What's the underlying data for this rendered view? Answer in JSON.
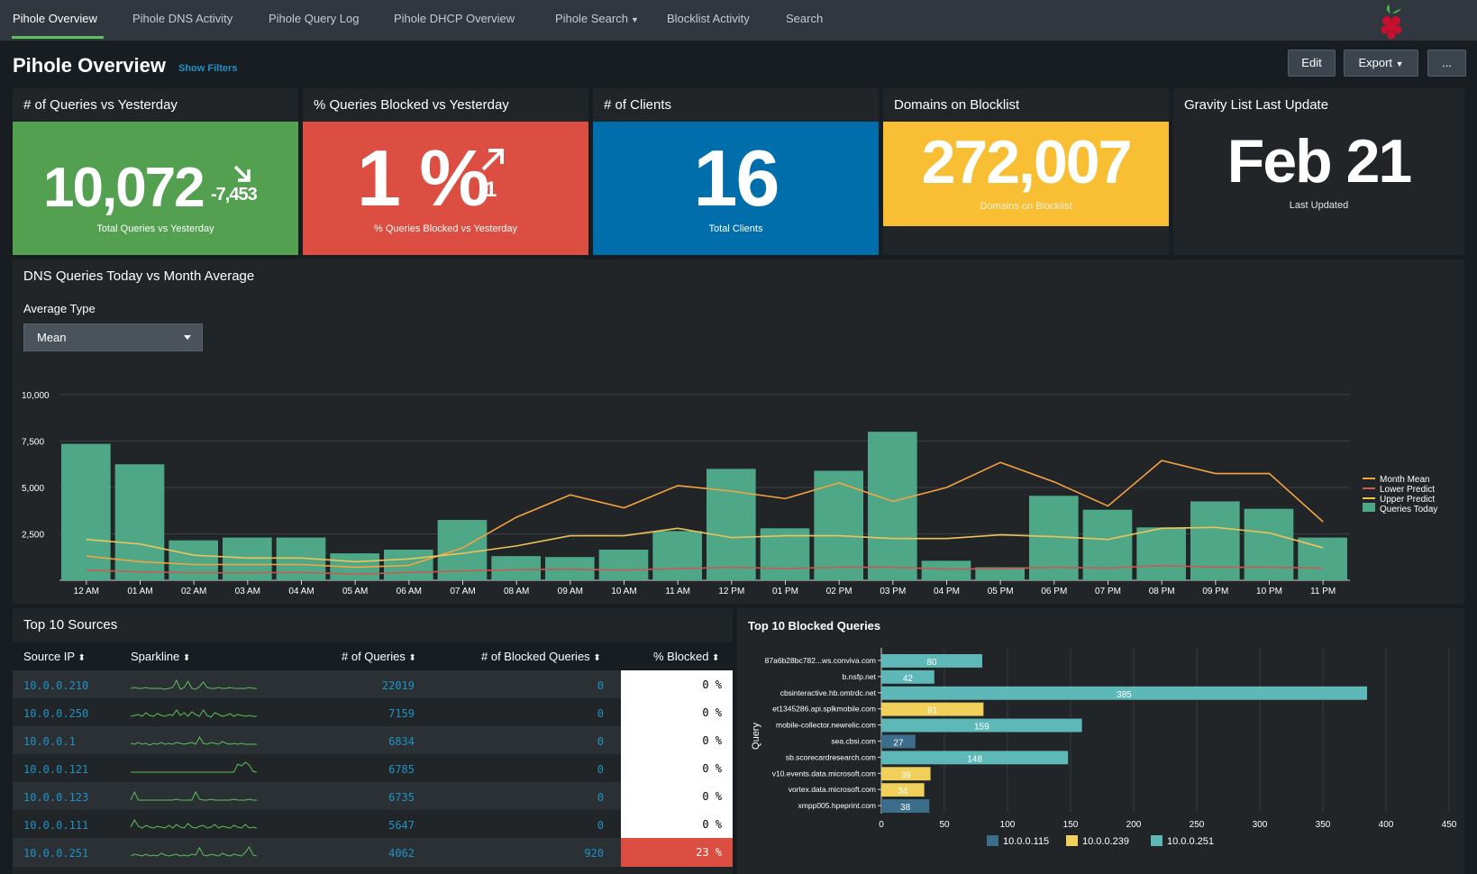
{
  "nav": {
    "items": [
      {
        "label": "Pihole Overview"
      },
      {
        "label": "Pihole DNS Activity"
      },
      {
        "label": "Pihole Query Log"
      },
      {
        "label": "Pihole DHCP Overview"
      },
      {
        "label": "Pihole Search"
      },
      {
        "label": "Blocklist Activity"
      },
      {
        "label": "Search"
      }
    ]
  },
  "header": {
    "title": "Pihole Overview",
    "show_filters": "Show Filters",
    "edit": "Edit",
    "export": "Export",
    "more": "..."
  },
  "kpis": {
    "queries": {
      "title": "# of Queries vs Yesterday",
      "value": "10,072",
      "delta": "-7,453",
      "caption": "Total Queries vs Yesterday",
      "color": "#53a051"
    },
    "blocked": {
      "title": "% Queries Blocked vs Yesterday",
      "value": "1 %",
      "delta": "1",
      "caption": "% Queries Blocked vs Yesterday",
      "color": "#dc4e41"
    },
    "clients": {
      "title": "# of Clients",
      "value": "16",
      "caption": "Total Clients",
      "color": "#006eaa"
    },
    "blocklist": {
      "title": "Domains on Blocklist",
      "value": "272,007",
      "caption": "Domains on Blocklist",
      "color": "#f8be34"
    },
    "gravity": {
      "title": "Gravity List Last Update",
      "value": "Feb 21",
      "caption": "Last Updated"
    }
  },
  "dns_panel": {
    "title": "DNS Queries Today vs Month Average",
    "average_label": "Average Type",
    "average_value": "Mean"
  },
  "chart_data": [
    {
      "type": "bar",
      "title": "DNS Queries Today vs Month Average",
      "categories": [
        "12 AM",
        "01 AM",
        "02 AM",
        "03 AM",
        "04 AM",
        "05 AM",
        "06 AM",
        "07 AM",
        "08 AM",
        "09 AM",
        "10 AM",
        "11 AM",
        "12 PM",
        "01 PM",
        "02 PM",
        "03 PM",
        "04 PM",
        "05 PM",
        "06 PM",
        "07 PM",
        "08 PM",
        "09 PM",
        "10 PM",
        "11 PM"
      ],
      "y_ticks": [
        "2,500",
        "5,000",
        "7,500",
        "10,000"
      ],
      "ylim": [
        0,
        10000
      ],
      "series": [
        {
          "name": "Queries Today",
          "type": "bar",
          "color": "#4ea887",
          "values": [
            7350,
            6250,
            2150,
            2300,
            2300,
            1450,
            1650,
            3250,
            1300,
            1250,
            1650,
            2650,
            6000,
            2800,
            5900,
            8000,
            1050,
            700,
            4550,
            3800,
            2850,
            4250,
            3850,
            2300
          ]
        },
        {
          "name": "Month Mean",
          "type": "line",
          "color": "#f5a442",
          "values": [
            1300,
            1000,
            850,
            850,
            850,
            700,
            800,
            1750,
            3400,
            4600,
            3900,
            5100,
            4800,
            4400,
            5250,
            4250,
            5000,
            6350,
            5300,
            4000,
            6450,
            5750,
            5750,
            3150
          ]
        },
        {
          "name": "Lower Predict",
          "type": "line",
          "color": "#c75b56",
          "values": [
            550,
            450,
            400,
            400,
            420,
            330,
            420,
            500,
            570,
            600,
            550,
            620,
            700,
            630,
            700,
            700,
            600,
            620,
            700,
            650,
            800,
            700,
            700,
            650
          ]
        },
        {
          "name": "Upper Predict",
          "type": "line",
          "color": "#f0c35a",
          "values": [
            2200,
            1950,
            1350,
            1200,
            1200,
            1000,
            1150,
            1450,
            1850,
            2400,
            2400,
            2800,
            2300,
            2400,
            2400,
            2250,
            2250,
            2450,
            2350,
            2200,
            2800,
            2850,
            2550,
            1750
          ]
        }
      ],
      "legend_position": "right"
    },
    {
      "type": "bar",
      "orientation": "horizontal",
      "stacked": true,
      "title": "Top 10 Blocked Queries",
      "ylabel": "Query",
      "categories": [
        "87a6b28bc782...ws.conviva.com",
        "b.nsfp.net",
        "cbsinteractive.hb.omtrdc.net",
        "et1345286.api.splkmobile.com",
        "mobile-collector.newrelic.com",
        "sea.cbsi.com",
        "sb.scorecardresearch.com",
        "v10.events.data.microsoft.com",
        "vortex.data.microsoft.com",
        "xmpp005.hpeprint.com"
      ],
      "x_ticks": [
        "0",
        "50",
        "100",
        "150",
        "200",
        "250",
        "300",
        "350",
        "400",
        "450"
      ],
      "xlim": [
        0,
        450
      ],
      "series": [
        {
          "name": "10.0.0.115",
          "color": "#3c6e8c",
          "values": [
            0,
            0,
            0,
            0,
            0,
            27,
            0,
            0,
            0,
            38
          ]
        },
        {
          "name": "10.0.0.239",
          "color": "#f0cf5a",
          "values": [
            0,
            0,
            0,
            81,
            0,
            0,
            0,
            39,
            34,
            0
          ]
        },
        {
          "name": "10.0.0.251",
          "color": "#5fb8b8",
          "values": [
            80,
            42,
            385,
            0,
            159,
            0,
            148,
            0,
            0,
            0
          ]
        }
      ],
      "labels": [
        "80",
        "42",
        "385",
        "81",
        "159",
        "27",
        "148",
        "39",
        "34",
        "38"
      ]
    }
  ],
  "sources": {
    "title": "Top 10 Sources",
    "columns": [
      "Source IP",
      "Sparkline",
      "# of Queries",
      "# of Blocked Queries",
      "% Blocked"
    ],
    "rows": [
      {
        "ip": "10.0.0.210",
        "queries": "22019",
        "blocked": "0",
        "pct": "0 %"
      },
      {
        "ip": "10.0.0.250",
        "queries": "7159",
        "blocked": "0",
        "pct": "0 %"
      },
      {
        "ip": "10.0.0.1",
        "queries": "6834",
        "blocked": "0",
        "pct": "0 %"
      },
      {
        "ip": "10.0.0.121",
        "queries": "6785",
        "blocked": "0",
        "pct": "0 %"
      },
      {
        "ip": "10.0.0.123",
        "queries": "6735",
        "blocked": "0",
        "pct": "0 %"
      },
      {
        "ip": "10.0.0.111",
        "queries": "5647",
        "blocked": "0",
        "pct": "0 %"
      },
      {
        "ip": "10.0.0.251",
        "queries": "4062",
        "blocked": "920",
        "pct": "23 %"
      }
    ]
  },
  "blocked_panel": {
    "title": "Top 10 Blocked Queries"
  },
  "colors": {
    "accent": "#5cc05c",
    "link": "#1e93c6",
    "danger": "#dc4e41"
  }
}
